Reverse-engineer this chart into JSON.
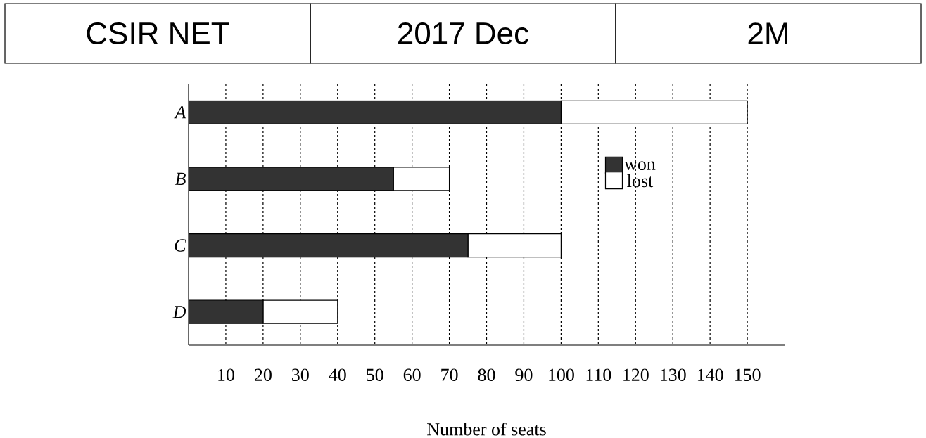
{
  "chart_data": {
    "type": "bar",
    "orientation": "horizontal",
    "stacked": true,
    "annotations": [
      "CSIR NET",
      "2017 Dec",
      "2M"
    ],
    "xlabel": "Number of seats",
    "categories": [
      "A",
      "B",
      "C",
      "D"
    ],
    "series": [
      {
        "name": "won",
        "color": "#333333",
        "values": [
          100,
          55,
          75,
          20
        ]
      },
      {
        "name": "lost",
        "color": "#ffffff",
        "values": [
          50,
          15,
          25,
          20
        ]
      }
    ],
    "xlim": [
      0,
      160
    ],
    "xticks": [
      10,
      20,
      30,
      40,
      50,
      60,
      70,
      80,
      90,
      100,
      110,
      120,
      130,
      140,
      150
    ],
    "grid": "x",
    "legend": "right"
  }
}
